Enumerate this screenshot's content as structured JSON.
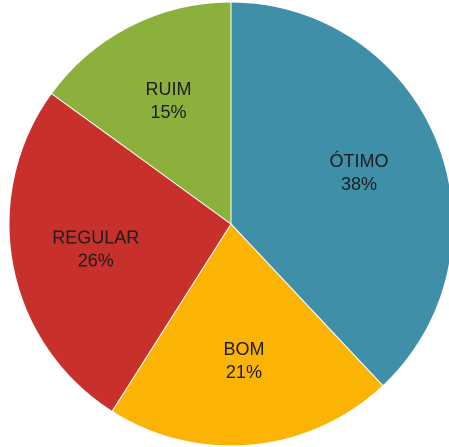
{
  "chart_data": {
    "type": "pie",
    "categories": [
      "ÓTIMO",
      "BOM",
      "REGULAR",
      "RUIM"
    ],
    "values": [
      38,
      21,
      26,
      15
    ],
    "value_labels": [
      "38%",
      "21%",
      "26%",
      "15%"
    ],
    "colors": [
      "#3f8fa9",
      "#fbb304",
      "#c8302c",
      "#8cb03c"
    ]
  }
}
